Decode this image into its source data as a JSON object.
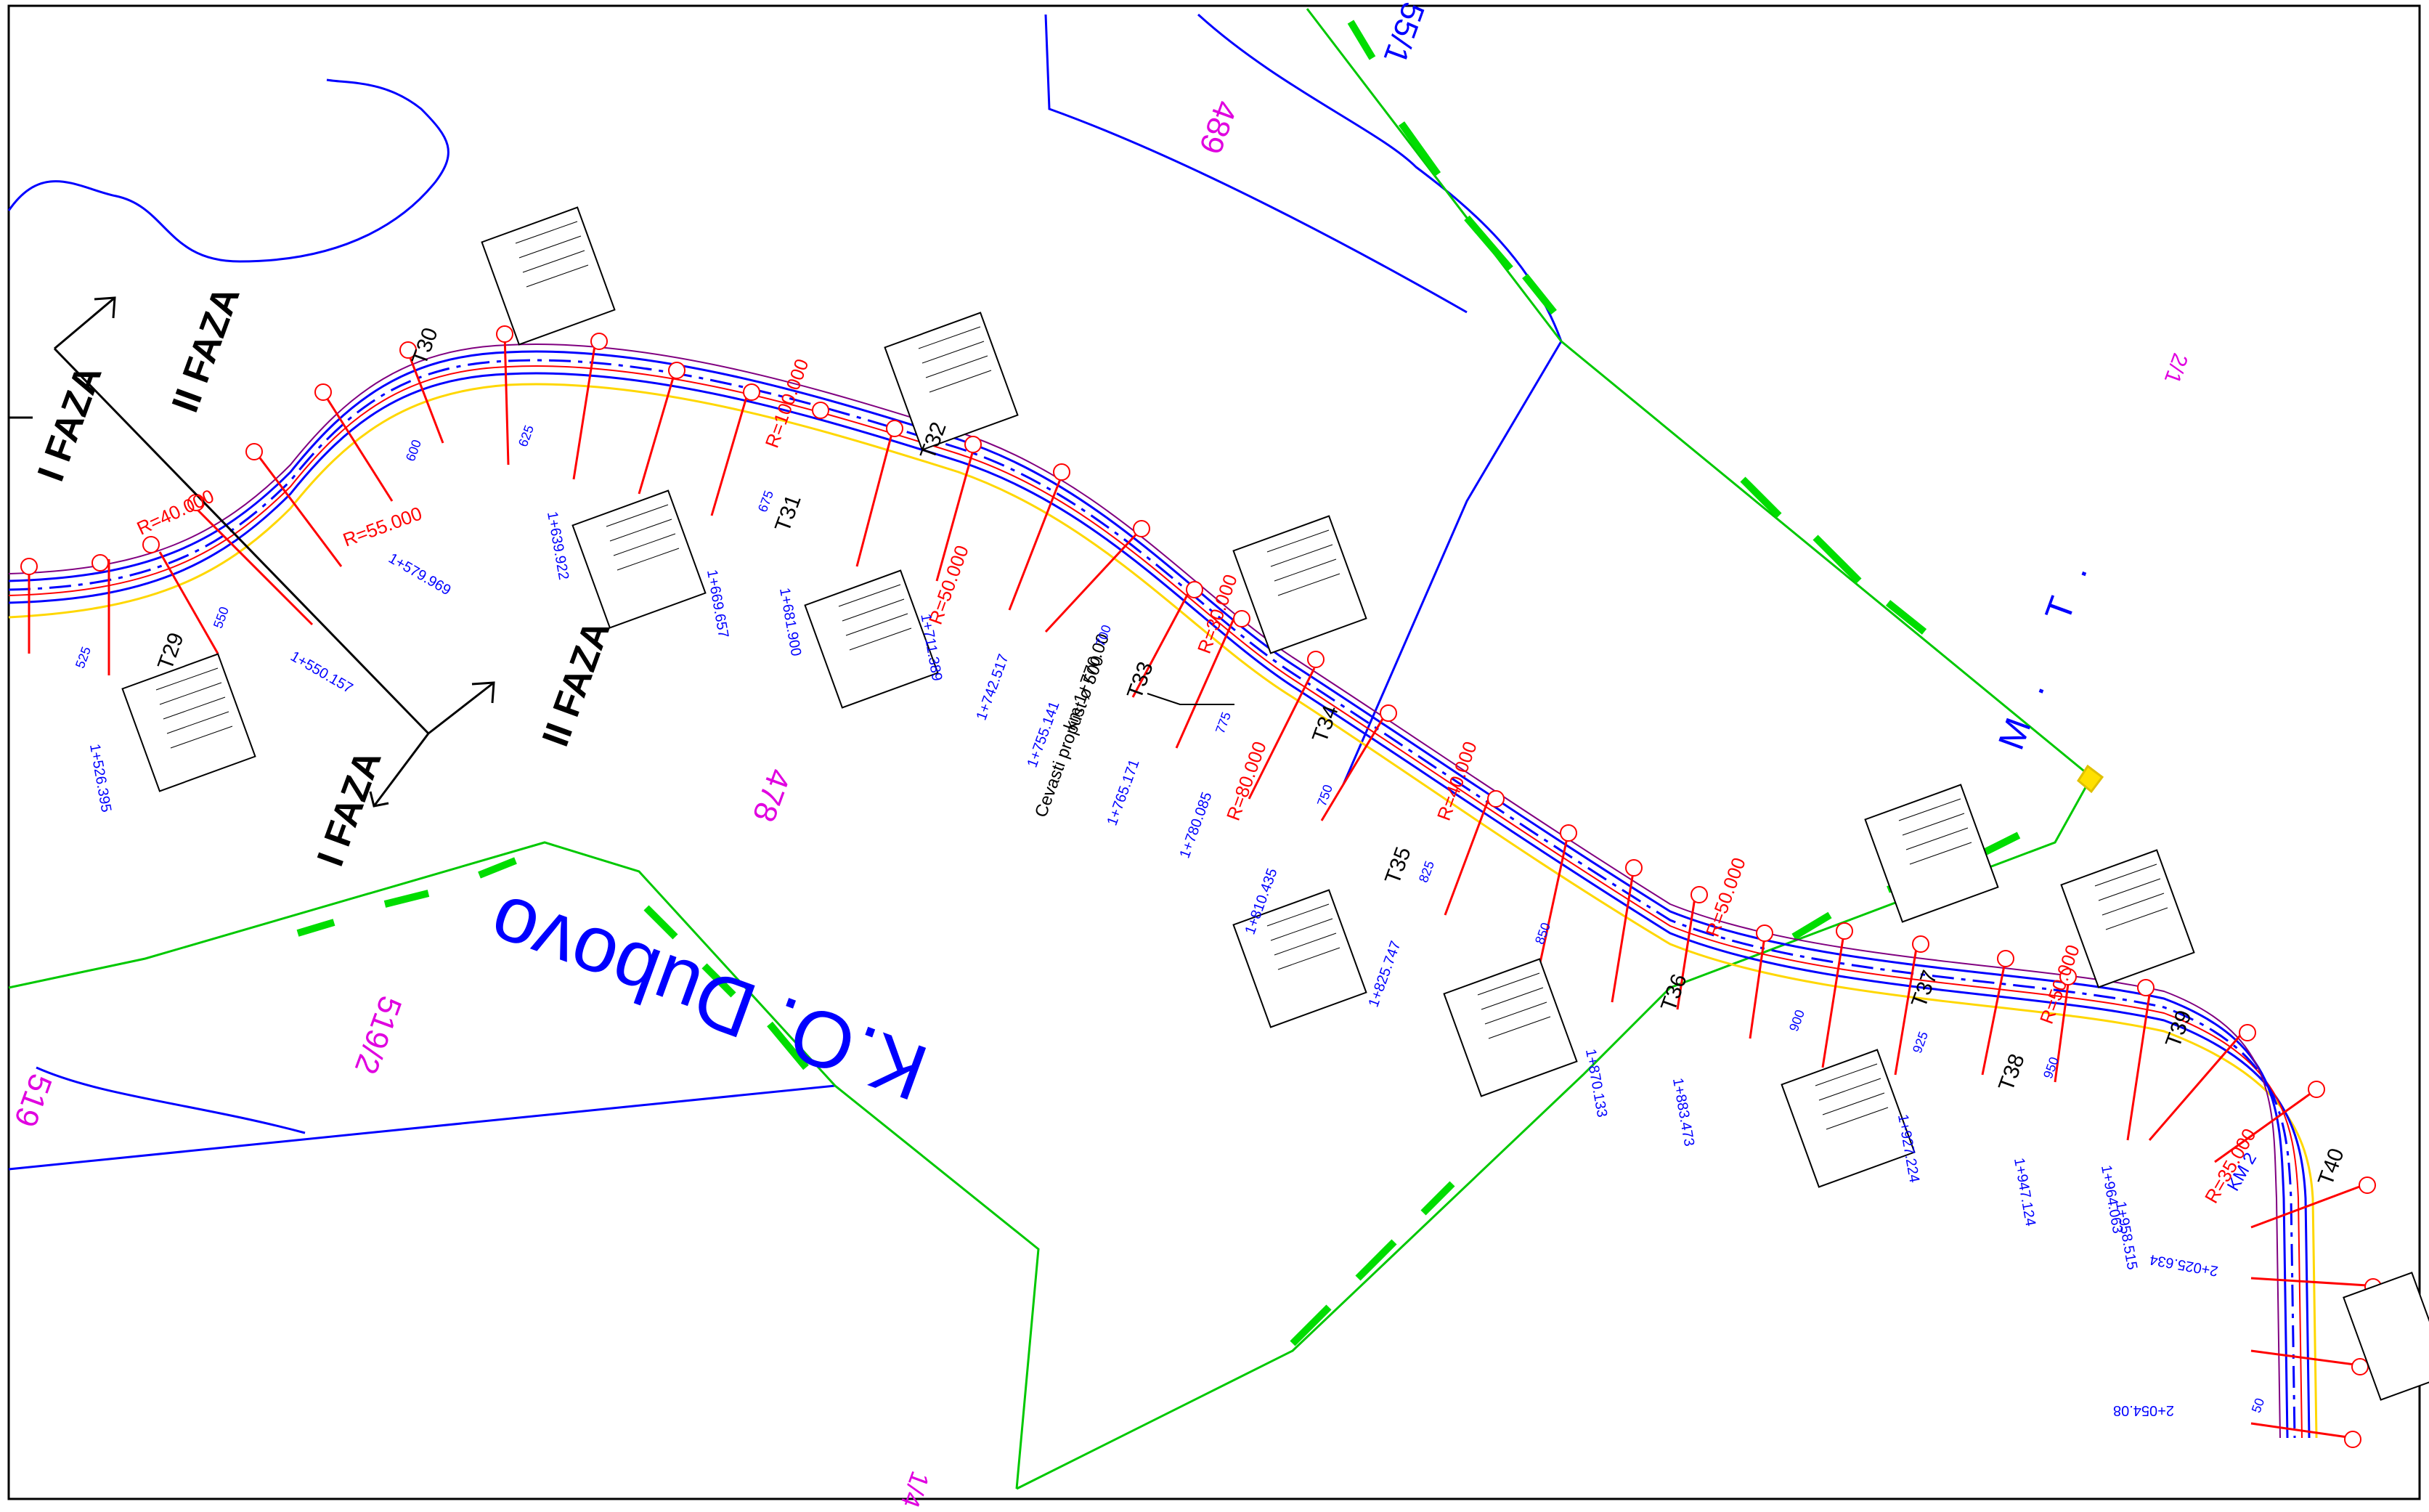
{
  "phases": {
    "phase_one": "I FAZA",
    "phase_two": "II FAZA"
  },
  "cadastral": {
    "municipality": "K.O. Dubovo",
    "parcels": [
      "489",
      "478",
      "519/2",
      "2/1",
      "55/1",
      "519",
      "1/4"
    ],
    "marker": "M. T."
  },
  "culvert": {
    "line1": "km 1+770.00",
    "line2": "Cevasti propust ø 500"
  },
  "vertex_labels": [
    "T29",
    "T30",
    "T31",
    "T32",
    "T33",
    "T34",
    "T35",
    "T36",
    "T37",
    "T38",
    "T39",
    "T40"
  ],
  "radii": [
    "R=40.000",
    "R=55.000",
    "R=100.000",
    "R=50.000",
    "R=30.000",
    "R=80.000",
    "R=40.000",
    "R=50.000",
    "R=50.000",
    "R=35.000"
  ],
  "chainage_major": [
    "1+526.395",
    "1+550.157",
    "1+579.969",
    "1+639.922",
    "1+669.657",
    "1+681.900",
    "1+711.389",
    "1+742.517",
    "1+755.141",
    "1+765.171",
    "1+780.085",
    "1+810.435",
    "1+825.747",
    "1+870.133",
    "1+883.473",
    "1+927.224",
    "1+947.124",
    "1+964.063",
    "1+958.515",
    "2+025.634",
    "2+054.08"
  ],
  "chainage_minor": [
    "525",
    "550",
    "600",
    "625",
    "675",
    "700",
    "750",
    "775",
    "825",
    "850",
    "900",
    "925",
    "950",
    "50"
  ],
  "legend": {
    "km_label": "KM 2"
  },
  "colors": {
    "road_edge": "#0000ff",
    "road_center": "#ff0000",
    "road_shoulder": "#ffd700",
    "boundary": "#00c800",
    "parcel_line": "#0000ff",
    "parcel_text": "#e000e0",
    "annotation": "#ff0000",
    "frame": "#000000"
  }
}
